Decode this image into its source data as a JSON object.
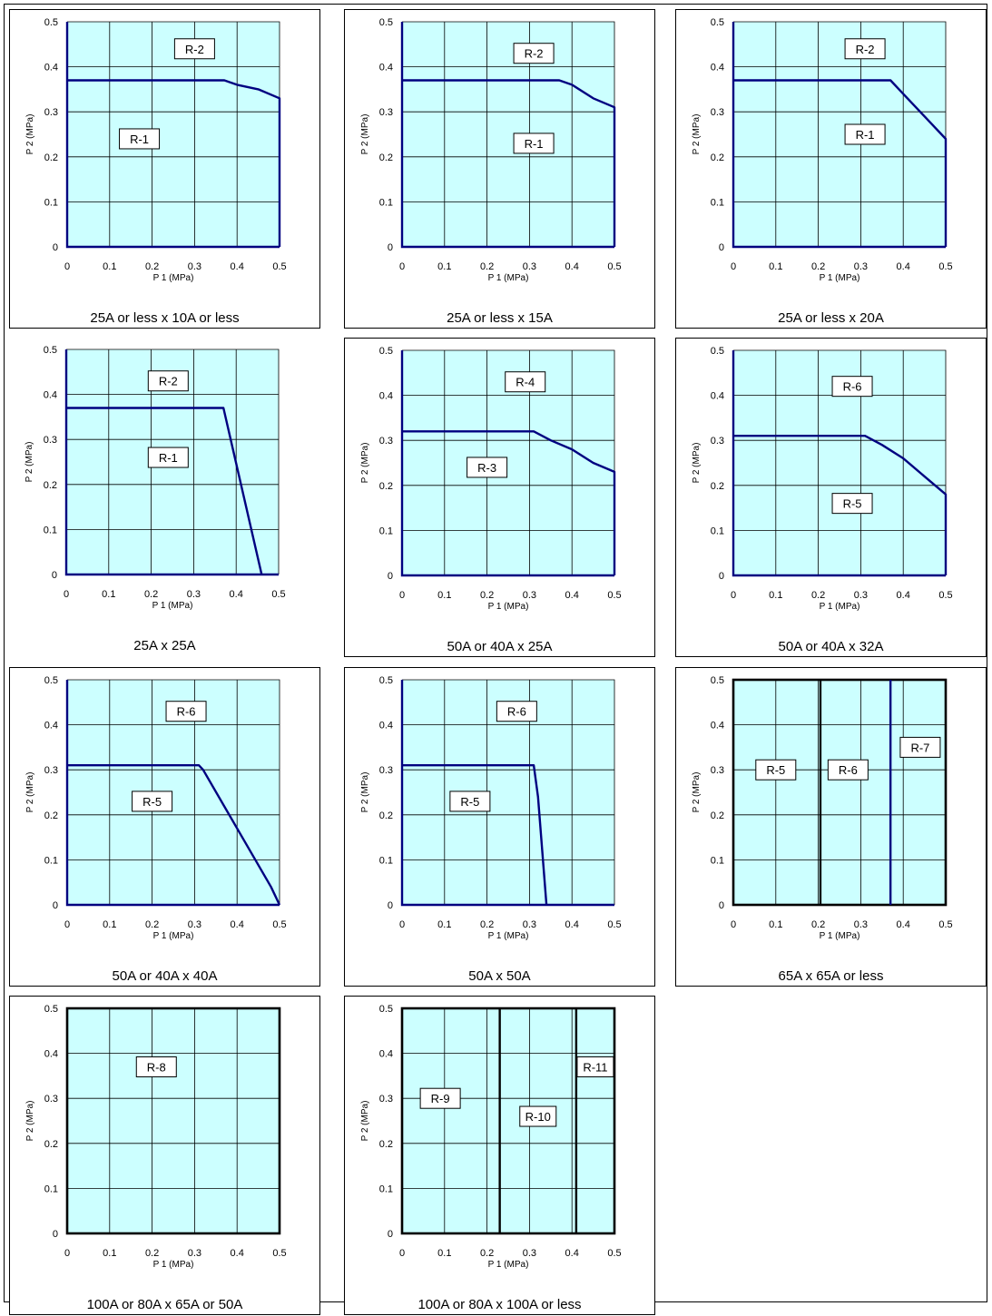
{
  "colors": {
    "plot_fill": "#ccffff",
    "grid": "#000000",
    "curve": "#000080",
    "boundary_dark": "#000000"
  },
  "chart_data": [
    {
      "type": "line",
      "title": "25A or less x 10A or less",
      "xlabel": "P 1 (MPa)",
      "ylabel": "P 2 (MPa)",
      "xlim": [
        0,
        0.5
      ],
      "ylim": [
        0,
        0.5
      ],
      "xticks": [
        "0",
        "0.1",
        "0.2",
        "0.3",
        "0.4",
        "0.5"
      ],
      "yticks": [
        "0",
        "0.1",
        "0.2",
        "0.3",
        "0.4",
        "0.5"
      ],
      "grid": true,
      "series": [
        {
          "x": [
            0,
            0.37,
            0.4,
            0.45,
            0.5,
            0.5
          ],
          "y": [
            0.37,
            0.37,
            0.36,
            0.35,
            0.33,
            0
          ]
        }
      ],
      "vlines": [],
      "frame": "curve",
      "annotations": [
        {
          "text": "R-2",
          "x": 0.3,
          "y": 0.44
        },
        {
          "text": "R-1",
          "x": 0.17,
          "y": 0.24
        }
      ]
    },
    {
      "type": "line",
      "title": "25A or less x 15A",
      "xlabel": "P 1 (MPa)",
      "ylabel": "P 2 (MPa)",
      "xlim": [
        0,
        0.5
      ],
      "ylim": [
        0,
        0.5
      ],
      "xticks": [
        "0",
        "0.1",
        "0.2",
        "0.3",
        "0.4",
        "0.5"
      ],
      "yticks": [
        "0",
        "0.1",
        "0.2",
        "0.3",
        "0.4",
        "0.5"
      ],
      "grid": true,
      "series": [
        {
          "x": [
            0,
            0.37,
            0.4,
            0.45,
            0.5,
            0.5
          ],
          "y": [
            0.37,
            0.37,
            0.36,
            0.33,
            0.31,
            0
          ]
        }
      ],
      "vlines": [],
      "frame": "curve",
      "annotations": [
        {
          "text": "R-2",
          "x": 0.31,
          "y": 0.43
        },
        {
          "text": "R-1",
          "x": 0.31,
          "y": 0.23
        }
      ]
    },
    {
      "type": "line",
      "title": "25A or less x 20A",
      "xlabel": "P 1 (MPa)",
      "ylabel": "P 2 (MPa)",
      "xlim": [
        0,
        0.5
      ],
      "ylim": [
        0,
        0.5
      ],
      "xticks": [
        "0",
        "0.1",
        "0.2",
        "0.3",
        "0.4",
        "0.5"
      ],
      "yticks": [
        "0",
        "0.1",
        "0.2",
        "0.3",
        "0.4",
        "0.5"
      ],
      "grid": true,
      "series": [
        {
          "x": [
            0,
            0.37,
            0.4,
            0.45,
            0.5,
            0.5
          ],
          "y": [
            0.37,
            0.37,
            0.34,
            0.29,
            0.24,
            0
          ]
        }
      ],
      "vlines": [],
      "frame": "curve",
      "annotations": [
        {
          "text": "R-2",
          "x": 0.31,
          "y": 0.44
        },
        {
          "text": "R-1",
          "x": 0.31,
          "y": 0.25
        }
      ]
    },
    {
      "type": "line",
      "title": "25A x 25A",
      "xlabel": "P 1 (MPa)",
      "ylabel": "P 2 (MPa)",
      "xlim": [
        0,
        0.5
      ],
      "ylim": [
        0,
        0.5
      ],
      "xticks": [
        "0",
        "0.1",
        "0.2",
        "0.3",
        "0.4",
        "0.5"
      ],
      "yticks": [
        "0",
        "0.1",
        "0.2",
        "0.3",
        "0.4",
        "0.5"
      ],
      "grid": true,
      "series": [
        {
          "x": [
            0,
            0.37,
            0.46,
            0.46
          ],
          "y": [
            0.37,
            0.37,
            0,
            0
          ]
        }
      ],
      "vlines": [],
      "frame": "curve",
      "annotations": [
        {
          "text": "R-2",
          "x": 0.24,
          "y": 0.43
        },
        {
          "text": "R-1",
          "x": 0.24,
          "y": 0.26
        }
      ]
    },
    {
      "type": "line",
      "title": "50A or 40A x 25A",
      "xlabel": "P 1 (MPa)",
      "ylabel": "P 2 (MPa)",
      "xlim": [
        0,
        0.5
      ],
      "ylim": [
        0,
        0.5
      ],
      "xticks": [
        "0",
        "0.1",
        "0.2",
        "0.3",
        "0.4",
        "0.5"
      ],
      "yticks": [
        "0",
        "0.1",
        "0.2",
        "0.3",
        "0.4",
        "0.5"
      ],
      "grid": true,
      "series": [
        {
          "x": [
            0,
            0.31,
            0.35,
            0.4,
            0.45,
            0.5,
            0.5
          ],
          "y": [
            0.32,
            0.32,
            0.3,
            0.28,
            0.25,
            0.23,
            0
          ]
        }
      ],
      "vlines": [],
      "frame": "curve",
      "annotations": [
        {
          "text": "R-4",
          "x": 0.29,
          "y": 0.43
        },
        {
          "text": "R-3",
          "x": 0.2,
          "y": 0.24
        }
      ]
    },
    {
      "type": "line",
      "title": "50A or 40A x 32A",
      "xlabel": "P 1 (MPa)",
      "ylabel": "P 2 (MPa)",
      "xlim": [
        0,
        0.5
      ],
      "ylim": [
        0,
        0.5
      ],
      "xticks": [
        "0",
        "0.1",
        "0.2",
        "0.3",
        "0.4",
        "0.5"
      ],
      "yticks": [
        "0",
        "0.1",
        "0.2",
        "0.3",
        "0.4",
        "0.5"
      ],
      "grid": true,
      "series": [
        {
          "x": [
            0,
            0.31,
            0.35,
            0.4,
            0.45,
            0.5,
            0.5
          ],
          "y": [
            0.31,
            0.31,
            0.29,
            0.26,
            0.22,
            0.18,
            0
          ]
        }
      ],
      "vlines": [],
      "frame": "curve",
      "annotations": [
        {
          "text": "R-6",
          "x": 0.28,
          "y": 0.42
        },
        {
          "text": "R-5",
          "x": 0.28,
          "y": 0.16
        }
      ]
    },
    {
      "type": "line",
      "title": "50A or 40A x 40A",
      "xlabel": "P 1 (MPa)",
      "ylabel": "P 2 (MPa)",
      "xlim": [
        0,
        0.5
      ],
      "ylim": [
        0,
        0.5
      ],
      "xticks": [
        "0",
        "0.1",
        "0.2",
        "0.3",
        "0.4",
        "0.5"
      ],
      "yticks": [
        "0",
        "0.1",
        "0.2",
        "0.3",
        "0.4",
        "0.5"
      ],
      "grid": true,
      "series": [
        {
          "x": [
            0,
            0.31,
            0.32,
            0.4,
            0.48,
            0.5,
            0.5
          ],
          "y": [
            0.31,
            0.31,
            0.3,
            0.17,
            0.04,
            0,
            0
          ]
        }
      ],
      "vlines": [],
      "frame": "curve",
      "annotations": [
        {
          "text": "R-6",
          "x": 0.28,
          "y": 0.43
        },
        {
          "text": "R-5",
          "x": 0.2,
          "y": 0.23
        }
      ]
    },
    {
      "type": "line",
      "title": "50A x 50A",
      "xlabel": "P 1 (MPa)",
      "ylabel": "P 2 (MPa)",
      "xlim": [
        0,
        0.5
      ],
      "ylim": [
        0,
        0.5
      ],
      "xticks": [
        "0",
        "0.1",
        "0.2",
        "0.3",
        "0.4",
        "0.5"
      ],
      "yticks": [
        "0",
        "0.1",
        "0.2",
        "0.3",
        "0.4",
        "0.5"
      ],
      "grid": true,
      "series": [
        {
          "x": [
            0,
            0.31,
            0.32,
            0.34,
            0.34
          ],
          "y": [
            0.31,
            0.31,
            0.24,
            0,
            0
          ]
        }
      ],
      "vlines": [],
      "frame": "curve",
      "annotations": [
        {
          "text": "R-6",
          "x": 0.27,
          "y": 0.43
        },
        {
          "text": "R-5",
          "x": 0.16,
          "y": 0.23
        }
      ]
    },
    {
      "type": "line",
      "title": "65A x 65A or less",
      "xlabel": "P 1 (MPa)",
      "ylabel": "P 2 (MPa)",
      "xlim": [
        0,
        0.5
      ],
      "ylim": [
        0,
        0.5
      ],
      "xticks": [
        "0",
        "0.1",
        "0.2",
        "0.3",
        "0.4",
        "0.5"
      ],
      "yticks": [
        "0",
        "0.1",
        "0.2",
        "0.3",
        "0.4",
        "0.5"
      ],
      "grid": true,
      "series": [],
      "vlines": [
        {
          "x": 0.205,
          "color": "boundary_dark"
        },
        {
          "x": 0.37,
          "color": "curve"
        }
      ],
      "frame": "box",
      "annotations": [
        {
          "text": "R-5",
          "x": 0.1,
          "y": 0.3
        },
        {
          "text": "R-6",
          "x": 0.27,
          "y": 0.3
        },
        {
          "text": "R-7",
          "x": 0.44,
          "y": 0.35
        }
      ]
    },
    {
      "type": "line",
      "title": "100A or 80A x 65A or 50A",
      "xlabel": "P 1 (MPa)",
      "ylabel": "P 2 (MPa)",
      "xlim": [
        0,
        0.5
      ],
      "ylim": [
        0,
        0.5
      ],
      "xticks": [
        "0",
        "0.1",
        "0.2",
        "0.3",
        "0.4",
        "0.5"
      ],
      "yticks": [
        "0",
        "0.1",
        "0.2",
        "0.3",
        "0.4",
        "0.5"
      ],
      "grid": true,
      "series": [],
      "vlines": [],
      "frame": "box",
      "annotations": [
        {
          "text": "R-8",
          "x": 0.21,
          "y": 0.37
        }
      ]
    },
    {
      "type": "line",
      "title": "100A or 80A x 100A or less",
      "xlabel": "P 1 (MPa)",
      "ylabel": "P 2 (MPa)",
      "xlim": [
        0,
        0.5
      ],
      "ylim": [
        0,
        0.5
      ],
      "xticks": [
        "0",
        "0.1",
        "0.2",
        "0.3",
        "0.4",
        "0.5"
      ],
      "yticks": [
        "0",
        "0.1",
        "0.2",
        "0.3",
        "0.4",
        "0.5"
      ],
      "grid": true,
      "series": [],
      "vlines": [
        {
          "x": 0.23,
          "color": "boundary_dark"
        },
        {
          "x": 0.41,
          "color": "boundary_dark"
        }
      ],
      "frame": "box",
      "annotations": [
        {
          "text": "R-9",
          "x": 0.09,
          "y": 0.3
        },
        {
          "text": "R-10",
          "x": 0.32,
          "y": 0.26
        },
        {
          "text": "R-11",
          "x": 0.455,
          "y": 0.37
        }
      ]
    }
  ]
}
